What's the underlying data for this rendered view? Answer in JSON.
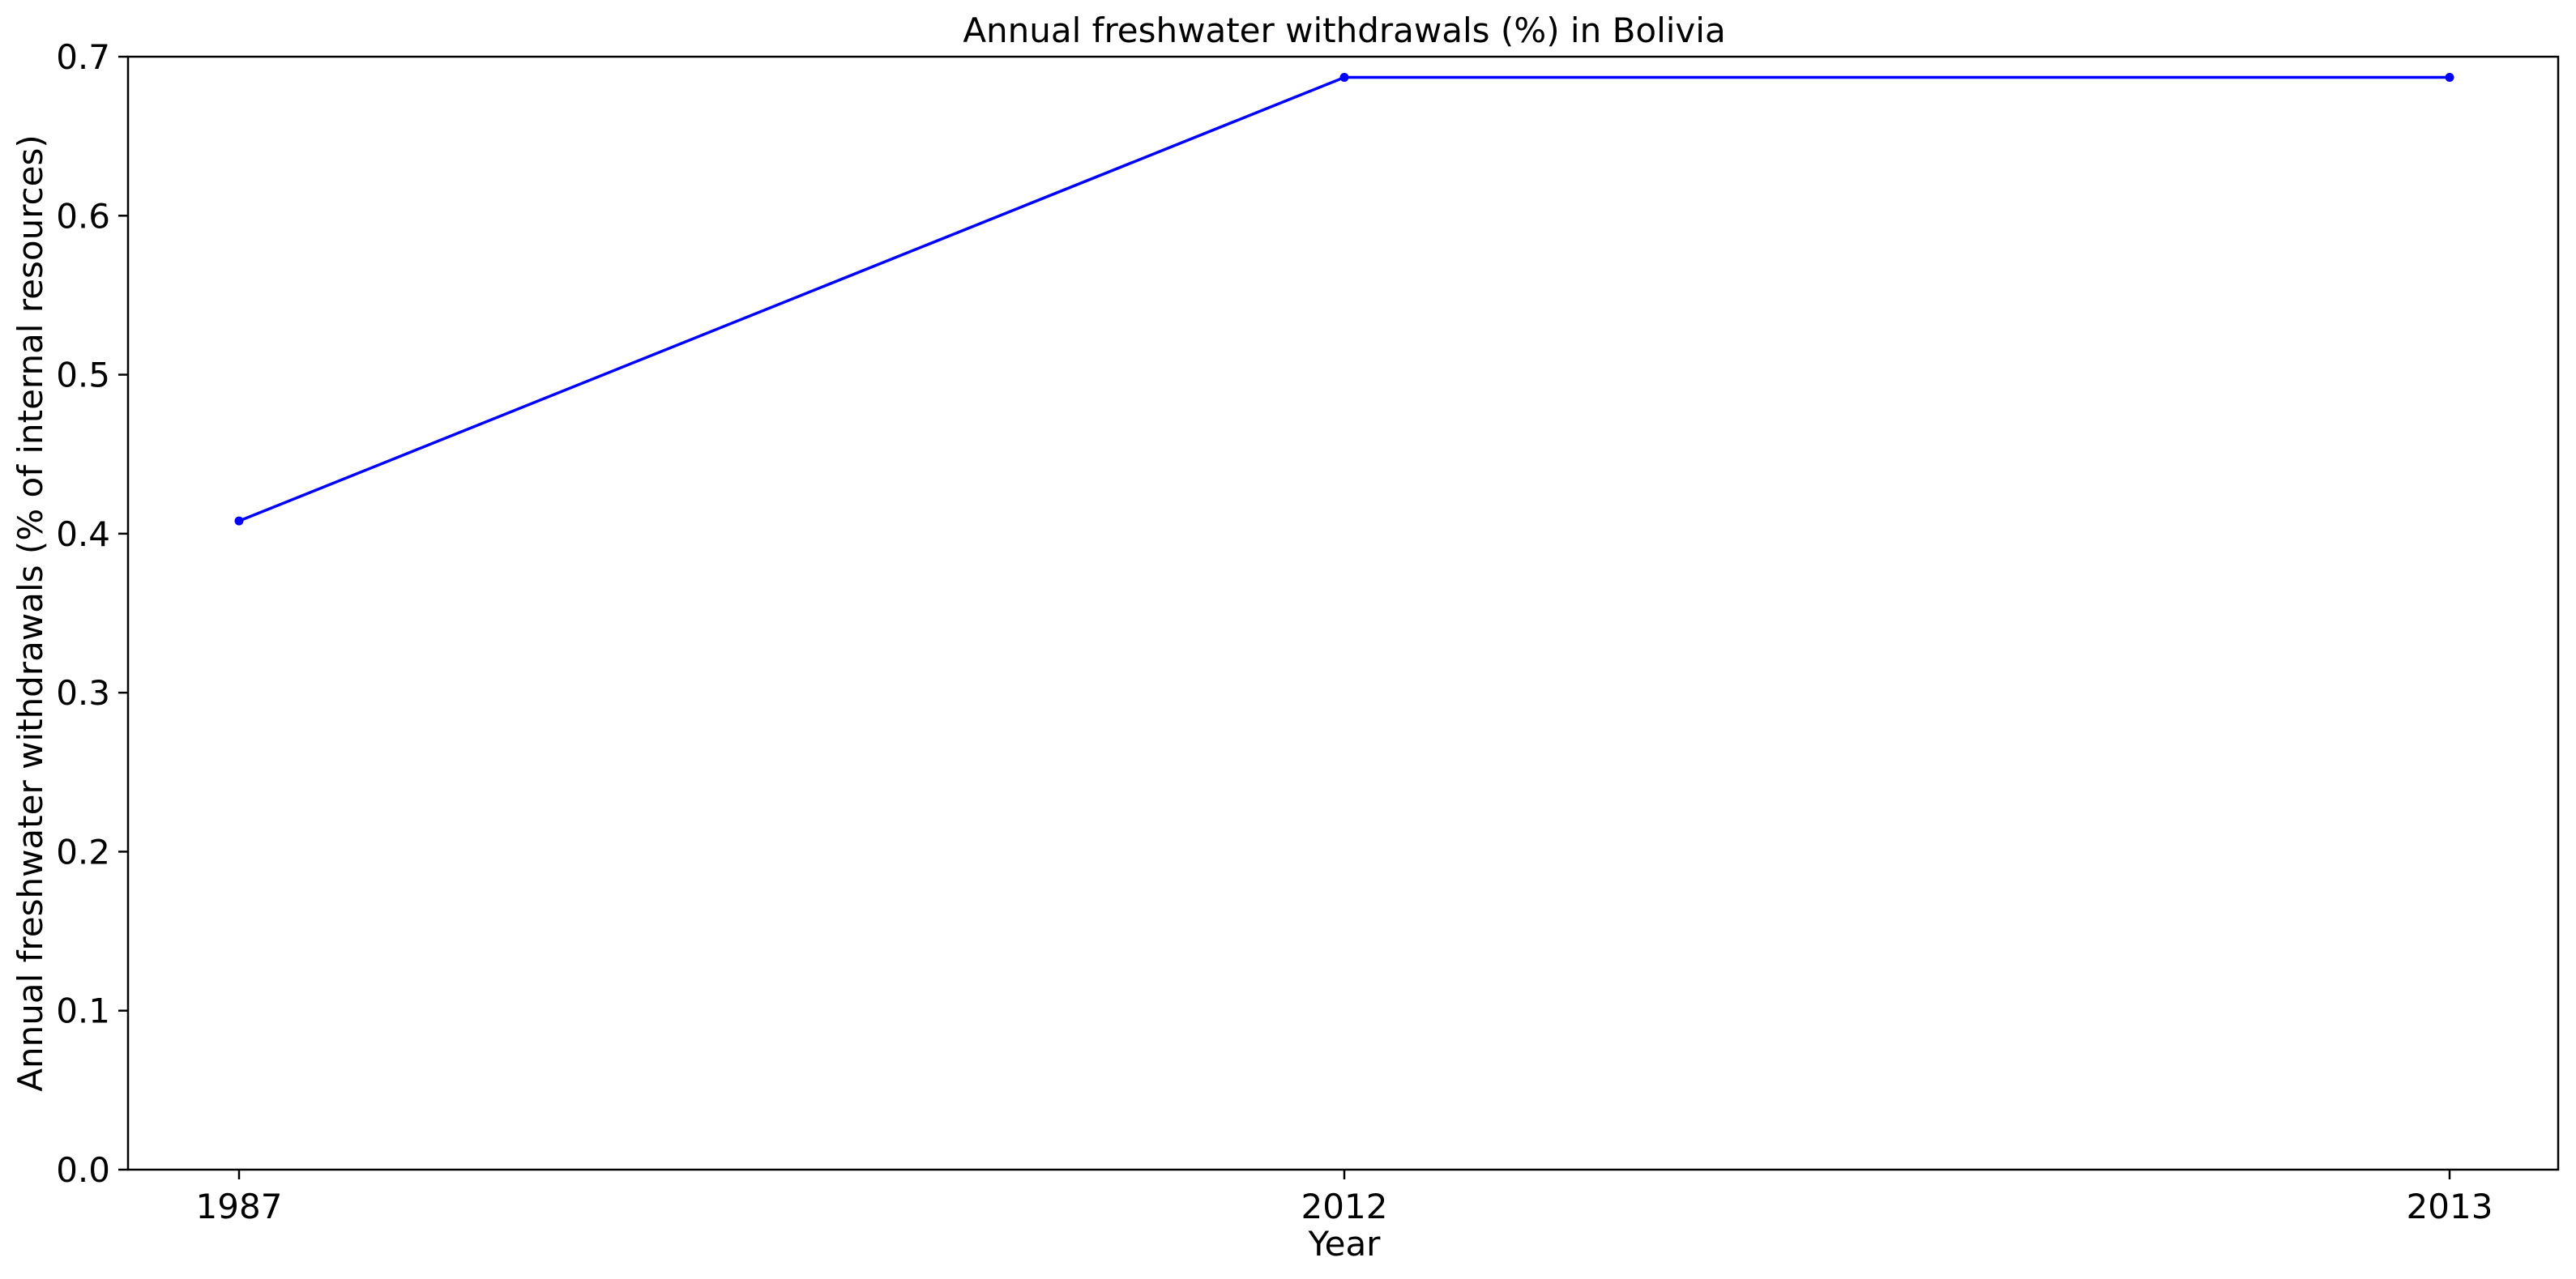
{
  "chart_data": {
    "type": "line",
    "title": "Annual freshwater withdrawals (%) in Bolivia",
    "xlabel": "Year",
    "ylabel": "Annual freshwater withdrawals (% of internal resources)",
    "categories": [
      "1987",
      "2012",
      "2013"
    ],
    "series": [
      {
        "values": [
          0.408,
          0.687,
          0.687
        ],
        "color": "#0000ff",
        "marker": "circle"
      }
    ],
    "ylim": [
      0,
      0.7
    ],
    "yticks": [
      "0.0",
      "0.1",
      "0.2",
      "0.3",
      "0.4",
      "0.5",
      "0.6",
      "0.7"
    ],
    "grid": false,
    "legend": "none"
  }
}
